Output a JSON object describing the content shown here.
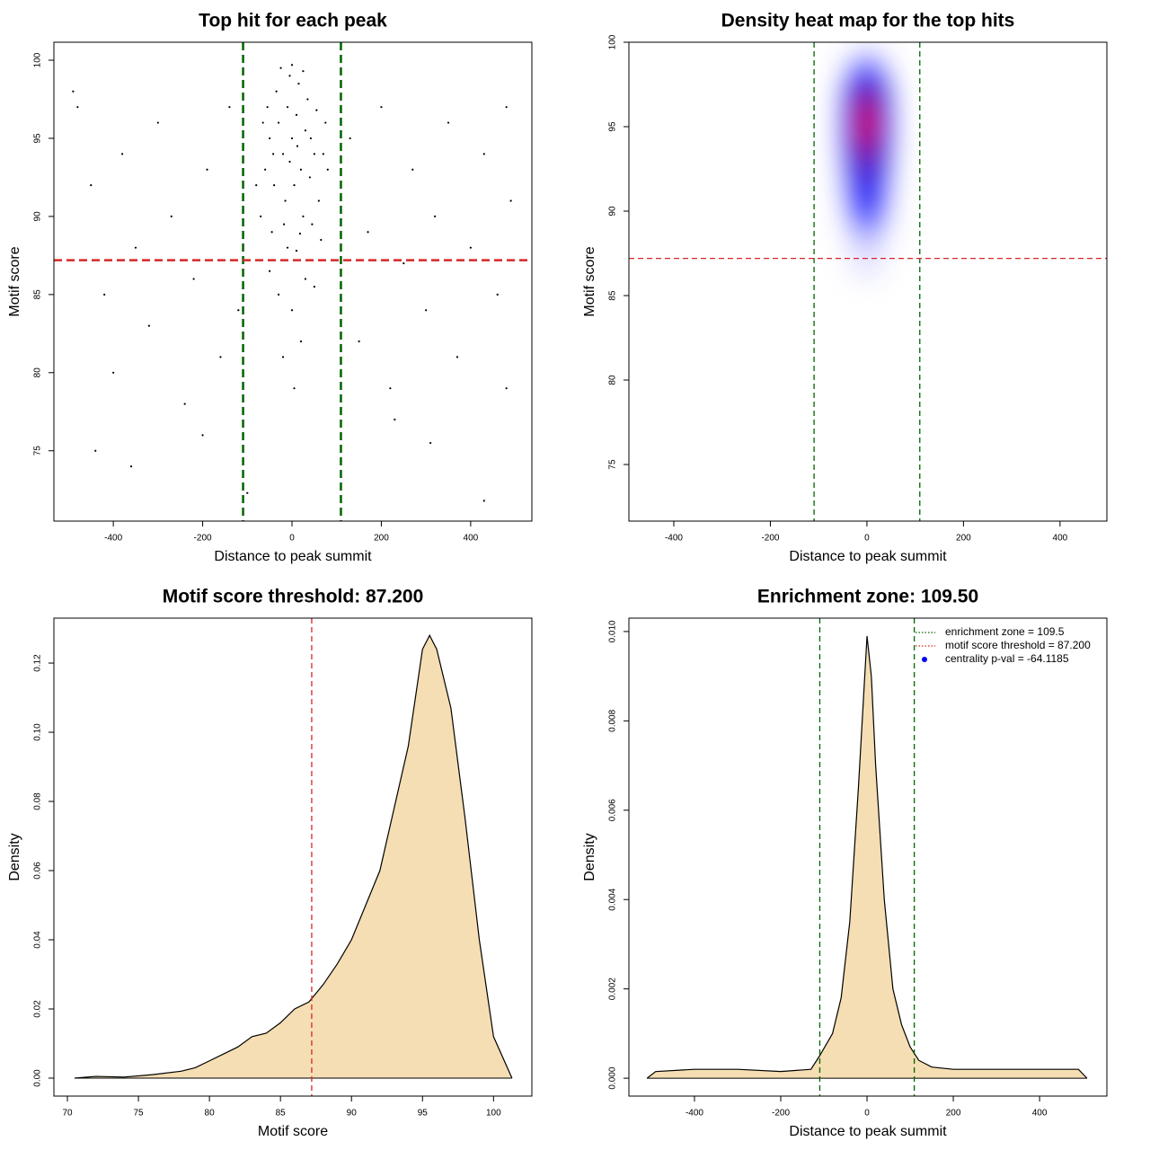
{
  "chart_data": [
    {
      "type": "scatter",
      "title": "Top hit for each peak",
      "xlabel": "Distance to peak summit",
      "ylabel": "Motif score",
      "color": "#000000",
      "x": [
        -50,
        -30,
        -10,
        10,
        30,
        50,
        -60,
        -40,
        -20,
        0,
        20,
        40,
        60,
        -70,
        -45,
        -15,
        5,
        25,
        45,
        65,
        -35,
        -5,
        15,
        35,
        -25,
        0,
        25,
        -55,
        55,
        70,
        -80,
        80,
        -10,
        10,
        30,
        -30,
        0,
        20,
        -20,
        5,
        -65,
        75,
        -5,
        12,
        -42,
        42,
        -18,
        18,
        -50,
        50,
        -480,
        -450,
        -420,
        -400,
        -380,
        -350,
        -320,
        -300,
        -270,
        -240,
        -220,
        -190,
        -160,
        -140,
        -120,
        130,
        150,
        170,
        200,
        220,
        250,
        270,
        300,
        320,
        350,
        370,
        400,
        430,
        460,
        480,
        -360,
        -440,
        310,
        230,
        -100,
        430,
        -200,
        480,
        -490,
        490
      ],
      "y": [
        95,
        96,
        97,
        96.5,
        95.5,
        94,
        93,
        92,
        94,
        95,
        93,
        92.5,
        91,
        90,
        89,
        91,
        92,
        90,
        89.5,
        88.5,
        98,
        99,
        98.5,
        97.5,
        99.5,
        99.7,
        99.3,
        97,
        96.8,
        94,
        92,
        93,
        88,
        87.8,
        86,
        85,
        84,
        82,
        81,
        79,
        96,
        96,
        93.5,
        94.5,
        94,
        95,
        89.5,
        88.9,
        86.5,
        85.5,
        97,
        92,
        85,
        80,
        94,
        88,
        83,
        96,
        90,
        78,
        86,
        93,
        81,
        97,
        84,
        95,
        82,
        89,
        97,
        79,
        87,
        93,
        84,
        90,
        96,
        81,
        88,
        94,
        85,
        97,
        74,
        75,
        75.5,
        77,
        72.3,
        71.8,
        76,
        79,
        98,
        91
      ],
      "xlim": [
        -533,
        537
      ],
      "ylim": [
        70.5,
        101.15
      ],
      "xticks": [
        -400,
        -200,
        0,
        200,
        400
      ],
      "yticks": [
        75,
        80,
        85,
        90,
        95,
        100
      ],
      "vlines": [
        -109.5,
        109.5
      ],
      "vline_color": "#006400",
      "hlines": [
        87.2
      ],
      "hline_color": "#d62728"
    },
    {
      "type": "heatmap",
      "title": "Density heat map for the top hits",
      "xlabel": "Distance to peak summit",
      "ylabel": "Motif score",
      "colors": [
        "#ffffff",
        "#0000ff",
        "#ff0000"
      ],
      "x": [
        -60,
        -40,
        -20,
        0,
        20,
        40,
        60
      ],
      "y": [
        86,
        87,
        88,
        89,
        90,
        91,
        92,
        93,
        94,
        95,
        96,
        97,
        98,
        99
      ],
      "z": [
        [
          0.02,
          0.05,
          0.08,
          0.1,
          0.08,
          0.05,
          0.02
        ],
        [
          0.02,
          0.07,
          0.12,
          0.15,
          0.12,
          0.07,
          0.02
        ],
        [
          0.03,
          0.09,
          0.16,
          0.2,
          0.16,
          0.09,
          0.03
        ],
        [
          0.05,
          0.14,
          0.24,
          0.3,
          0.24,
          0.14,
          0.05
        ],
        [
          0.07,
          0.2,
          0.36,
          0.45,
          0.36,
          0.2,
          0.07
        ],
        [
          0.08,
          0.25,
          0.44,
          0.55,
          0.44,
          0.25,
          0.08
        ],
        [
          0.1,
          0.29,
          0.52,
          0.65,
          0.52,
          0.29,
          0.1
        ],
        [
          0.11,
          0.34,
          0.6,
          0.75,
          0.6,
          0.34,
          0.11
        ],
        [
          0.14,
          0.41,
          0.72,
          0.9,
          0.72,
          0.41,
          0.14
        ],
        [
          0.15,
          0.45,
          0.8,
          1.0,
          0.8,
          0.45,
          0.15
        ],
        [
          0.14,
          0.43,
          0.76,
          0.95,
          0.76,
          0.43,
          0.14
        ],
        [
          0.12,
          0.36,
          0.64,
          0.8,
          0.64,
          0.36,
          0.12
        ],
        [
          0.08,
          0.23,
          0.4,
          0.5,
          0.4,
          0.23,
          0.08
        ],
        [
          0.04,
          0.11,
          0.2,
          0.25,
          0.2,
          0.11,
          0.04
        ]
      ],
      "xlim": [
        -493,
        497
      ],
      "ylim": [
        71.65,
        100
      ],
      "xticks": [
        -400,
        -200,
        0,
        200,
        400
      ],
      "yticks": [
        75,
        80,
        85,
        90,
        95,
        100
      ],
      "vlines": [
        -109.5,
        109.5
      ],
      "vline_color": "#006400",
      "hlines": [
        87.2
      ],
      "hline_color": "#d62728"
    },
    {
      "type": "density",
      "title": "Motif score threshold: 87.200",
      "xlabel": "Motif score",
      "ylabel": "Density",
      "color": "#f5deb3",
      "x": [
        70.5,
        72,
        74,
        76,
        78,
        79,
        80,
        81,
        82,
        83,
        84,
        85,
        86,
        87,
        88,
        89,
        90,
        91,
        92,
        93,
        94,
        95,
        95.5,
        96,
        97,
        98,
        99,
        100,
        101.3
      ],
      "y": [
        0,
        0.0005,
        0.0003,
        0.001,
        0.002,
        0.003,
        0.005,
        0.007,
        0.009,
        0.012,
        0.013,
        0.016,
        0.02,
        0.022,
        0.027,
        0.033,
        0.04,
        0.05,
        0.06,
        0.078,
        0.096,
        0.124,
        0.128,
        0.124,
        0.107,
        0.075,
        0.04,
        0.012,
        0
      ],
      "xlim": [
        69.05,
        102.7
      ],
      "ylim": [
        -0.0052,
        0.133
      ],
      "xticks": [
        70,
        75,
        80,
        85,
        90,
        95,
        100
      ],
      "yticks": [
        {
          "value": 0,
          "label": "0.00"
        },
        {
          "value": 0.02,
          "label": "0.02"
        },
        {
          "value": 0.04,
          "label": "0.04"
        },
        {
          "value": 0.06,
          "label": "0.06"
        },
        {
          "value": 0.08,
          "label": "0.08"
        },
        {
          "value": 0.1,
          "label": "0.10"
        },
        {
          "value": 0.12,
          "label": "0.12"
        }
      ],
      "vlines": [
        87.2
      ],
      "vline_color": "#d62728"
    },
    {
      "type": "density",
      "title": "Enrichment zone: 109.50",
      "xlabel": "Distance to peak summit",
      "ylabel": "Density",
      "color": "#f5deb3",
      "x": [
        -510,
        -490,
        -400,
        -300,
        -200,
        -130,
        -110,
        -80,
        -60,
        -40,
        -20,
        0,
        10,
        20,
        40,
        60,
        80,
        100,
        120,
        150,
        200,
        300,
        400,
        490,
        510
      ],
      "y": [
        0,
        0.00015,
        0.0002,
        0.0002,
        0.00015,
        0.0002,
        0.0005,
        0.001,
        0.0018,
        0.0035,
        0.0065,
        0.0099,
        0.009,
        0.007,
        0.004,
        0.002,
        0.0012,
        0.0007,
        0.0004,
        0.00025,
        0.0002,
        0.0002,
        0.0002,
        0.0002,
        0
      ],
      "xlim": [
        -552,
        556
      ],
      "ylim": [
        -0.0004,
        0.0103
      ],
      "xticks": [
        -400,
        -200,
        0,
        200,
        400
      ],
      "yticks": [
        {
          "value": 0,
          "label": "0.000"
        },
        {
          "value": 0.002,
          "label": "0.002"
        },
        {
          "value": 0.004,
          "label": "0.004"
        },
        {
          "value": 0.006,
          "label": "0.006"
        },
        {
          "value": 0.008,
          "label": "0.008"
        },
        {
          "value": 0.01,
          "label": "0.010"
        }
      ],
      "vlines": [
        -109.5,
        109.5
      ],
      "vline_color": "#006400",
      "legend_position": "topright",
      "legend": [
        {
          "label": "enrichment zone = 109.5",
          "color": "#006400",
          "style": "dotted"
        },
        {
          "label": "motif score threshold = 87.200",
          "color": "#d62728",
          "style": "dotted"
        },
        {
          "label": "centrality p-val = -64.1185",
          "color": "#0000ff",
          "style": "point"
        }
      ]
    }
  ]
}
